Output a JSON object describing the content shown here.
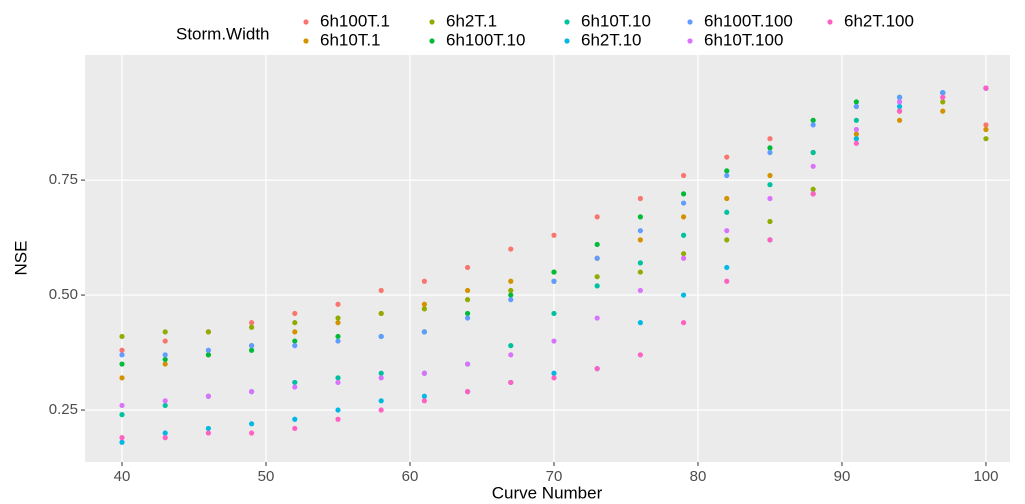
{
  "chart_data": {
    "type": "scatter",
    "x_label": "Curve Number",
    "y_label": "NSE",
    "legend_title": "Storm.Width",
    "xlim": [
      37.43,
      101.67
    ],
    "ylim": [
      0.137,
      1.022
    ],
    "xticks": [
      40,
      50,
      60,
      70,
      80,
      90,
      100
    ],
    "yticks": [
      0.25,
      {
        "value": 0.5,
        "label": "0.50"
      },
      0.75
    ],
    "grid": true,
    "legend_position": "top",
    "x": [
      40,
      43,
      46,
      49,
      52,
      55,
      58,
      61,
      64,
      67,
      70,
      73,
      76,
      79,
      82,
      85,
      88,
      91,
      94,
      97,
      100
    ],
    "series": [
      {
        "name": "6h100T.1",
        "color": "#F8766D",
        "values": [
          0.38,
          0.4,
          0.42,
          0.44,
          0.46,
          0.48,
          0.51,
          0.53,
          0.56,
          0.6,
          0.63,
          0.67,
          0.71,
          0.76,
          0.8,
          0.84,
          0.88,
          0.91,
          0.93,
          0.94,
          0.87
        ]
      },
      {
        "name": "6h10T.1",
        "color": "#D39200",
        "values": [
          0.32,
          0.35,
          0.37,
          0.39,
          0.42,
          0.44,
          0.46,
          0.48,
          0.51,
          0.53,
          0.55,
          0.58,
          0.62,
          0.67,
          0.71,
          0.76,
          0.81,
          0.85,
          0.88,
          0.9,
          0.86
        ]
      },
      {
        "name": "6h2T.1",
        "color": "#93AA00",
        "values": [
          0.41,
          0.42,
          0.42,
          0.43,
          0.44,
          0.45,
          0.46,
          0.47,
          0.49,
          0.51,
          0.53,
          0.54,
          0.55,
          0.59,
          0.62,
          0.66,
          0.73,
          0.84,
          0.9,
          0.92,
          0.84
        ]
      },
      {
        "name": "6h100T.10",
        "color": "#00BA38",
        "values": [
          0.35,
          0.36,
          0.37,
          0.38,
          0.4,
          0.41,
          0.41,
          0.42,
          0.46,
          0.5,
          0.55,
          0.61,
          0.67,
          0.72,
          0.77,
          0.82,
          0.88,
          0.92,
          0.93,
          0.94,
          0.95
        ]
      },
      {
        "name": "6h10T.10",
        "color": "#00C19F",
        "values": [
          0.24,
          0.26,
          0.28,
          0.29,
          0.31,
          0.32,
          0.33,
          0.33,
          0.35,
          0.39,
          0.46,
          0.52,
          0.57,
          0.63,
          0.68,
          0.74,
          0.81,
          0.88,
          0.93,
          0.94,
          0.95
        ]
      },
      {
        "name": "6h2T.10",
        "color": "#00B9E3",
        "values": [
          0.18,
          0.2,
          0.21,
          0.22,
          0.23,
          0.25,
          0.27,
          0.28,
          0.29,
          0.31,
          0.33,
          0.34,
          0.44,
          0.5,
          0.56,
          0.62,
          0.72,
          0.84,
          0.91,
          0.94,
          0.95
        ]
      },
      {
        "name": "6h100T.100",
        "color": "#619CFF",
        "values": [
          0.37,
          0.37,
          0.38,
          0.39,
          0.39,
          0.4,
          0.41,
          0.42,
          0.45,
          0.49,
          0.53,
          0.58,
          0.64,
          0.7,
          0.76,
          0.81,
          0.87,
          0.91,
          0.93,
          0.94,
          0.95
        ]
      },
      {
        "name": "6h10T.100",
        "color": "#DB72FB",
        "values": [
          0.26,
          0.27,
          0.28,
          0.29,
          0.3,
          0.31,
          0.32,
          0.33,
          0.35,
          0.37,
          0.4,
          0.45,
          0.51,
          0.58,
          0.64,
          0.71,
          0.78,
          0.86,
          0.92,
          0.93,
          0.95
        ]
      },
      {
        "name": "6h2T.100",
        "color": "#FF61C3",
        "values": [
          0.19,
          0.19,
          0.2,
          0.2,
          0.21,
          0.23,
          0.25,
          0.27,
          0.29,
          0.31,
          0.32,
          0.34,
          0.37,
          0.44,
          0.53,
          0.62,
          0.72,
          0.83,
          0.9,
          0.93,
          0.95
        ]
      }
    ]
  }
}
